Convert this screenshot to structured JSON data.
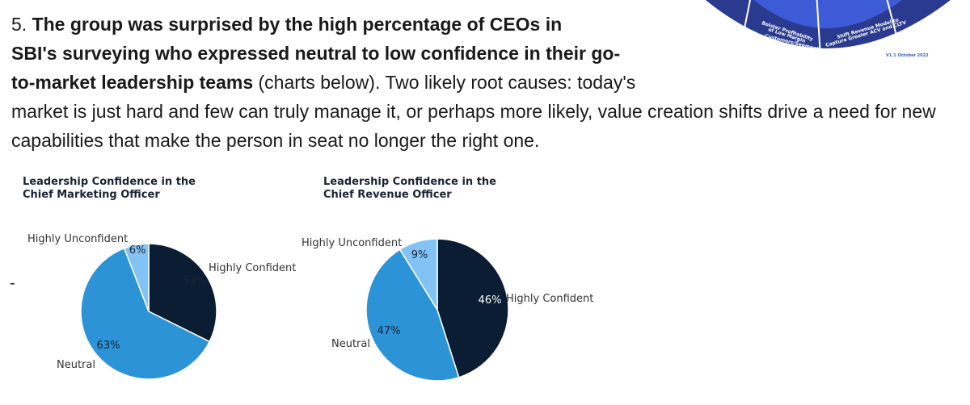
{
  "text": {
    "num": "5.",
    "bold1": "The group was surprised by the high percentage of CEOs in",
    "bold2": "SBI's surveying who expressed neutral to low confidence in their go-",
    "bold3": "to-market leadership teams",
    "rest3": " (charts below). Two likely root causes: today's",
    "line4": "market is just hard and few can truly manage it, or perhaps more likely, value creation shifts drive a need for new",
    "line5": "capabilities that make the person in seat no longer the right one.",
    "dash": "-"
  },
  "wheel": {
    "s1": "...venue in ...st-Efficient Channels",
    "s2a": "Bolster Profitability",
    "s2b": "of Low Margin",
    "s2c": "Customers/Segments",
    "s3a": "Shift Revenue Model to",
    "s3b": "Capture Greater ACV and CLTV",
    "version": "V1.1 October 2022",
    "colors": {
      "dark": "#2a3a8f",
      "light": "#3d5bd6"
    }
  },
  "colors": {
    "highly_confident": "#0b1d33",
    "neutral": "#2b93d6",
    "highly_unconfident": "#82c3f4"
  },
  "chart_data": [
    {
      "type": "pie",
      "title_line1": "Leadership Confidence in the",
      "title_line2": "Chief Marketing Officer",
      "slices": [
        {
          "label": "Highly Confident",
          "value": 33,
          "value_label": "33%"
        },
        {
          "label": "Neutral",
          "value": 63,
          "value_label": "63%"
        },
        {
          "label": "Highly Unconfident",
          "value": 6,
          "value_label": "6%"
        }
      ]
    },
    {
      "type": "pie",
      "title_line1": "Leadership Confidence in the",
      "title_line2": "Chief Revenue Officer",
      "slices": [
        {
          "label": "Highly Confident",
          "value": 46,
          "value_label": "46%"
        },
        {
          "label": "Neutral",
          "value": 47,
          "value_label": "47%"
        },
        {
          "label": "Highly Unconfident",
          "value": 9,
          "value_label": "9%"
        }
      ]
    }
  ]
}
